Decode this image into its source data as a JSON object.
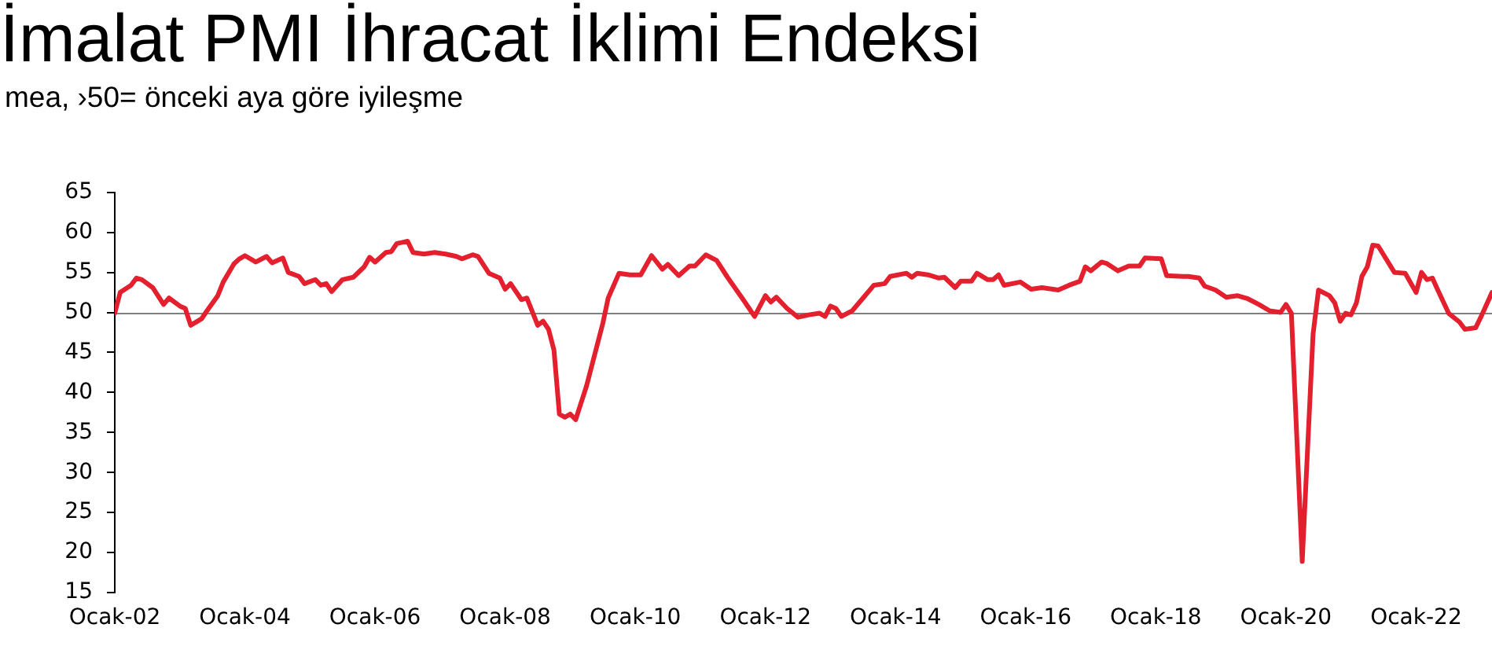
{
  "chart_data": {
    "type": "line",
    "title": "İmalat PMI İhracat İklimi Endeksi",
    "subtitle": "mea, ›50= önceki aya göre iyileşme",
    "x": [
      "2002-01",
      "2002-02",
      "2002-04",
      "2002-05",
      "2002-06",
      "2002-08",
      "2002-10",
      "2002-11",
      "2003-01",
      "2003-02",
      "2003-03",
      "2003-05",
      "2003-06",
      "2003-08",
      "2003-09",
      "2003-11",
      "2003-12",
      "2004-01",
      "2004-03",
      "2004-05",
      "2004-06",
      "2004-08",
      "2004-09",
      "2004-11",
      "2004-12",
      "2005-02",
      "2005-03",
      "2005-04",
      "2005-05",
      "2005-07",
      "2005-09",
      "2005-11",
      "2005-12",
      "2006-01",
      "2006-03",
      "2006-04",
      "2006-05",
      "2006-07",
      "2006-08",
      "2006-10",
      "2006-12",
      "2007-02",
      "2007-04",
      "2007-05",
      "2007-07",
      "2007-08",
      "2007-10",
      "2007-12",
      "2008-01",
      "2008-02",
      "2008-04",
      "2008-05",
      "2008-07",
      "2008-08",
      "2008-09",
      "2008-10",
      "2008-11",
      "2008-12",
      "2009-01",
      "2009-02",
      "2009-04",
      "2009-06",
      "2009-07",
      "2009-08",
      "2009-10",
      "2009-12",
      "2010-02",
      "2010-04",
      "2010-06",
      "2010-07",
      "2010-09",
      "2010-11",
      "2010-12",
      "2011-02",
      "2011-04",
      "2011-06",
      "2011-09",
      "2011-10",
      "2011-11",
      "2012-01",
      "2012-02",
      "2012-03",
      "2012-05",
      "2012-07",
      "2012-09",
      "2012-11",
      "2012-12",
      "2013-01",
      "2013-02",
      "2013-03",
      "2013-05",
      "2013-07",
      "2013-09",
      "2013-11",
      "2013-12",
      "2014-03",
      "2014-04",
      "2014-05",
      "2014-07",
      "2014-09",
      "2014-10",
      "2014-12",
      "2015-01",
      "2015-03",
      "2015-04",
      "2015-06",
      "2015-07",
      "2015-08",
      "2015-09",
      "2015-12",
      "2016-02",
      "2016-04",
      "2016-07",
      "2016-09",
      "2016-11",
      "2016-12",
      "2017-01",
      "2017-03",
      "2017-04",
      "2017-06",
      "2017-08",
      "2017-10",
      "2017-11",
      "2018-02",
      "2018-03",
      "2018-06",
      "2018-07",
      "2018-09",
      "2018-10",
      "2018-12",
      "2019-02",
      "2019-04",
      "2019-06",
      "2019-08",
      "2019-10",
      "2019-12",
      "2020-01",
      "2020-02",
      "2020-04",
      "2020-06",
      "2020-07",
      "2020-09",
      "2020-10",
      "2020-11",
      "2020-12",
      "2021-01",
      "2021-02",
      "2021-03",
      "2021-04",
      "2021-05",
      "2021-06",
      "2021-09",
      "2021-11",
      "2022-01",
      "2022-02",
      "2022-03",
      "2022-04",
      "2022-05",
      "2022-07",
      "2022-09",
      "2022-10",
      "2022-12",
      "2023-01",
      "2023-03"
    ],
    "values": [
      49.9,
      52.5,
      53.4,
      54.3,
      54.1,
      53.1,
      51.0,
      51.8,
      50.8,
      50.5,
      48.4,
      49.2,
      50.2,
      52.1,
      53.8,
      56.1,
      56.7,
      57.1,
      56.3,
      57.0,
      56.2,
      56.8,
      55.0,
      54.5,
      53.6,
      54.1,
      53.4,
      53.6,
      52.6,
      54.1,
      54.4,
      55.7,
      56.9,
      56.3,
      57.5,
      57.6,
      58.6,
      58.9,
      57.5,
      57.3,
      57.5,
      57.3,
      57.0,
      56.7,
      57.2,
      57.0,
      54.9,
      54.3,
      52.9,
      53.6,
      51.6,
      51.8,
      48.4,
      48.9,
      47.9,
      45.3,
      37.3,
      36.9,
      37.3,
      36.6,
      40.8,
      46.0,
      48.6,
      51.8,
      54.9,
      54.7,
      54.7,
      57.1,
      55.4,
      56.0,
      54.6,
      55.8,
      55.8,
      57.2,
      56.5,
      54.4,
      51.5,
      50.5,
      49.5,
      52.1,
      51.3,
      51.9,
      50.5,
      49.4,
      49.7,
      49.9,
      49.5,
      50.8,
      50.5,
      49.5,
      50.2,
      51.8,
      53.4,
      53.6,
      54.5,
      54.9,
      54.4,
      54.9,
      54.7,
      54.3,
      54.4,
      53.1,
      53.9,
      53.9,
      54.9,
      54.1,
      54.1,
      54.7,
      53.4,
      53.8,
      52.9,
      53.1,
      52.8,
      53.4,
      53.9,
      55.7,
      55.2,
      56.3,
      56.1,
      55.2,
      55.8,
      55.8,
      56.8,
      56.7,
      54.6,
      54.5,
      54.5,
      54.3,
      53.3,
      52.8,
      51.9,
      52.1,
      51.7,
      51.0,
      50.2,
      50.0,
      51.0,
      49.9,
      18.9,
      47.3,
      52.8,
      52.1,
      51.2,
      48.9,
      49.9,
      49.7,
      51.2,
      54.5,
      55.7,
      58.4,
      58.3,
      55.0,
      54.9,
      52.5,
      55.0,
      54.1,
      54.3,
      52.8,
      49.9,
      48.8,
      47.9,
      48.1,
      49.5,
      52.5
    ],
    "color": "#e4202e",
    "marker": "none",
    "xlim": [
      "2002-01",
      "2023-03"
    ],
    "xticks": [
      {
        "value": "2002-01",
        "label": "Ocak-02"
      },
      {
        "value": "2004-01",
        "label": "Ocak-04"
      },
      {
        "value": "2006-01",
        "label": "Ocak-06"
      },
      {
        "value": "2008-01",
        "label": "Ocak-08"
      },
      {
        "value": "2010-01",
        "label": "Ocak-10"
      },
      {
        "value": "2012-01",
        "label": "Ocak-12"
      },
      {
        "value": "2014-01",
        "label": "Ocak-14"
      },
      {
        "value": "2016-01",
        "label": "Ocak-16"
      },
      {
        "value": "2018-01",
        "label": "Ocak-18"
      },
      {
        "value": "2020-01",
        "label": "Ocak-20"
      },
      {
        "value": "2022-01",
        "label": "Ocak-22"
      }
    ],
    "ylim": [
      15,
      65
    ],
    "yticks": [
      15,
      20,
      25,
      30,
      35,
      40,
      45,
      50,
      55,
      60,
      65
    ],
    "ref_lines": [
      {
        "axis": "y",
        "value": 50,
        "color": "#808080"
      }
    ]
  }
}
